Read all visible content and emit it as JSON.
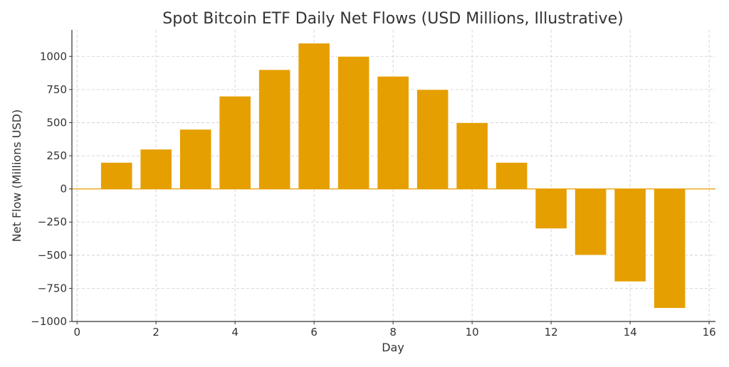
{
  "chart_data": {
    "type": "bar",
    "title": "Spot Bitcoin ETF Daily Net Flows (USD Millions, Illustrative)",
    "xlabel": "Day",
    "ylabel": "Net Flow (Millions USD)",
    "x": [
      1,
      2,
      3,
      4,
      5,
      6,
      7,
      8,
      9,
      10,
      11,
      12,
      13,
      14,
      15
    ],
    "values": [
      200,
      300,
      450,
      700,
      900,
      1100,
      1000,
      850,
      750,
      500,
      200,
      -300,
      -500,
      -700,
      -900
    ],
    "xlim": [
      -0.13,
      16.16
    ],
    "ylim": [
      -1000,
      1200
    ],
    "xticks": [
      0,
      2,
      4,
      6,
      8,
      10,
      12,
      14,
      16
    ],
    "xtick_labels": [
      "0",
      "2",
      "4",
      "6",
      "8",
      "10",
      "12",
      "14",
      "16"
    ],
    "yticks": [
      -1000,
      -750,
      -500,
      -250,
      0,
      250,
      500,
      750,
      1000
    ],
    "ytick_labels": [
      "−1000",
      "−750",
      "−500",
      "−250",
      "0",
      "250",
      "500",
      "750",
      "1000"
    ],
    "bar_width": 0.8,
    "bar_color": "#E69F00",
    "zero_line_color": "#E69F00",
    "grid": true,
    "legend": "none"
  }
}
